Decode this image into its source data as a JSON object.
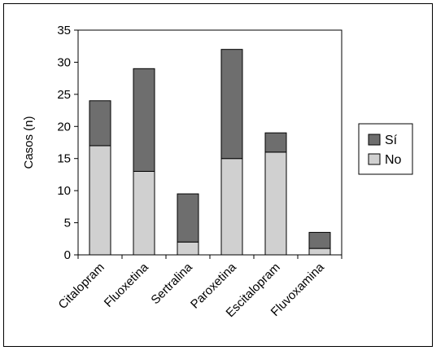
{
  "chart_data": {
    "type": "bar",
    "stacked": true,
    "title": "",
    "xlabel": "",
    "ylabel": "Casos (n)",
    "ylim": [
      0,
      35
    ],
    "yticks": [
      0,
      5,
      10,
      15,
      20,
      25,
      30,
      35
    ],
    "ytick_labels": [
      "0",
      "5",
      "10",
      "15",
      "20",
      "25",
      "30",
      "35"
    ],
    "grid": false,
    "legend_position": "right",
    "categories": [
      "Citalopram",
      "Fluoxetina",
      "Sertralina",
      "Paroxetina",
      "Escitalopram",
      "Fluvoxamina"
    ],
    "series": [
      {
        "name": "No",
        "color": "#d0d0d0",
        "values": [
          17,
          13,
          2,
          15,
          16,
          1
        ]
      },
      {
        "name": "Sí",
        "color": "#6e6e6e",
        "values": [
          7,
          16,
          7.5,
          17,
          3,
          2.5
        ]
      }
    ],
    "ytick_label_overrides": {
      "bar_heights_note": ""
    }
  }
}
